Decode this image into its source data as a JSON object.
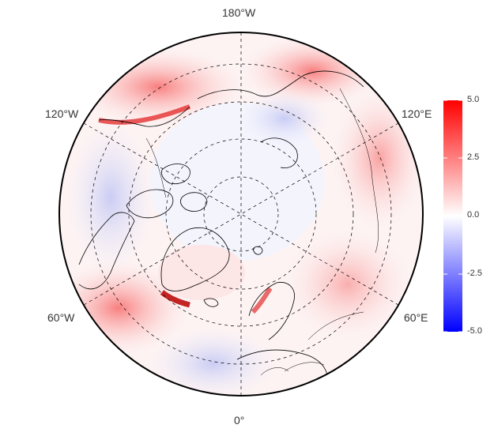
{
  "map": {
    "projection": "north polar stereographic",
    "center": "North Pole",
    "longitude_labels": {
      "top": "180°W",
      "bottom": "0°",
      "upper_left": "120°W",
      "upper_right": "120°E",
      "lower_left": "60°W",
      "lower_right": "60°E"
    },
    "graticule": "dashed",
    "coastlines": true,
    "country_borders": true
  },
  "colorbar": {
    "min": -5.0,
    "max": 5.0,
    "ticks": [
      "5.0",
      "2.5",
      "0.0",
      "-2.5",
      "-5.0"
    ],
    "colors": {
      "high": "#ff0000",
      "mid": "#ffffff",
      "low": "#0000ff"
    }
  }
}
